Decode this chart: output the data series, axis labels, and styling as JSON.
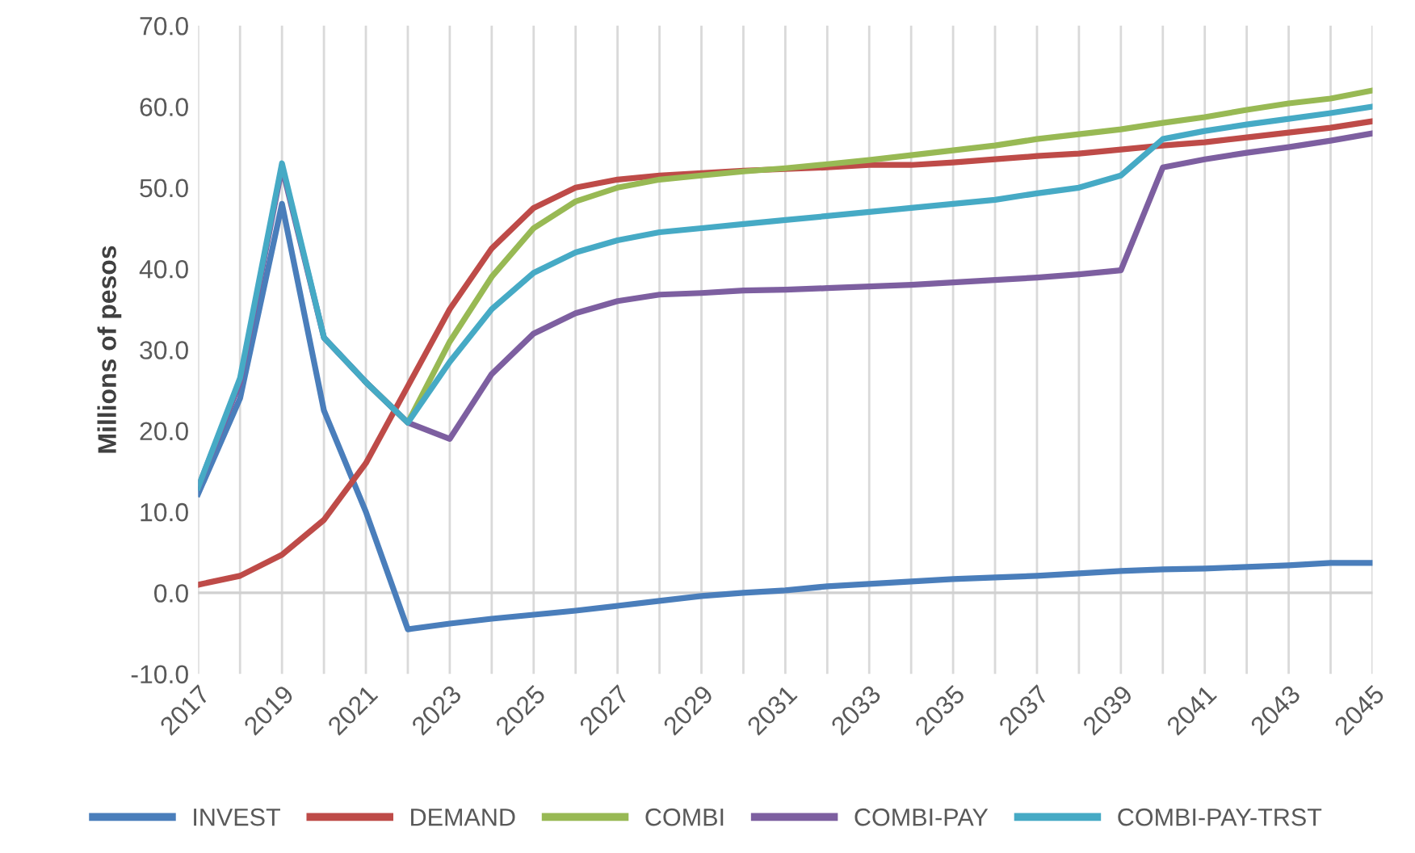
{
  "chart_data": {
    "type": "line",
    "ylabel": "Millions of pesos",
    "x": [
      2017,
      2018,
      2019,
      2020,
      2021,
      2022,
      2023,
      2024,
      2025,
      2026,
      2027,
      2028,
      2029,
      2030,
      2031,
      2032,
      2033,
      2034,
      2035,
      2036,
      2037,
      2038,
      2039,
      2040,
      2041,
      2042,
      2043,
      2044,
      2045
    ],
    "series": [
      {
        "name": "INVEST",
        "color": "#4a7ebb",
        "values": [
          12.2,
          24,
          48,
          22.5,
          10,
          -4.5,
          -3.8,
          -3.2,
          -2.7,
          -2.2,
          -1.6,
          -1.0,
          -0.4,
          0,
          0.3,
          0.8,
          1.1,
          1.4,
          1.7,
          1.9,
          2.1,
          2.4,
          2.7,
          2.9,
          3.0,
          3.2,
          3.4,
          3.7,
          3.7
        ]
      },
      {
        "name": "DEMAND",
        "color": "#be4b48",
        "values": [
          1.0,
          2.1,
          4.7,
          9.0,
          16,
          25.5,
          35,
          42.5,
          47.5,
          50,
          51,
          51.5,
          51.8,
          52.1,
          52.3,
          52.5,
          52.8,
          52.8,
          53.1,
          53.5,
          53.9,
          54.2,
          54.7,
          55.2,
          55.6,
          56.2,
          56.8,
          57.4,
          58.2
        ]
      },
      {
        "name": "COMBI",
        "color": "#98b954",
        "values": [
          null,
          null,
          null,
          null,
          26,
          21,
          31,
          39,
          45,
          48.3,
          50,
          51,
          51.5,
          52,
          52.4,
          52.9,
          53.4,
          54,
          54.6,
          55.2,
          56,
          56.6,
          57.2,
          58,
          58.7,
          59.6,
          60.4,
          61,
          62
        ]
      },
      {
        "name": "COMBI-PAY",
        "color": "#7d5fa0",
        "values": [
          13,
          26,
          52.5,
          31.5,
          26,
          21,
          19,
          27,
          32,
          34.5,
          36,
          36.8,
          37,
          37.3,
          37.4,
          37.6,
          37.8,
          38,
          38.3,
          38.6,
          38.9,
          39.3,
          39.8,
          52.5,
          53.5,
          54.3,
          55,
          55.8,
          56.7
        ]
      },
      {
        "name": "COMBI-PAY-TRST",
        "color": "#46aac5",
        "values": [
          13,
          26.5,
          53,
          31.5,
          26,
          21,
          28.5,
          35,
          39.5,
          42,
          43.5,
          44.5,
          45,
          45.5,
          46,
          46.5,
          47,
          47.5,
          48,
          48.5,
          49.3,
          50,
          51.5,
          56,
          57,
          57.8,
          58.5,
          59.2,
          60
        ]
      }
    ],
    "xlim": [
      2017,
      2045
    ],
    "xticks": [
      2017,
      {
        "value": 2018,
        "label": null
      },
      2019,
      {
        "value": 2020,
        "label": null
      },
      2021,
      {
        "value": 2022,
        "label": null
      },
      2023,
      {
        "value": 2024,
        "label": null
      },
      2025,
      {
        "value": 2026,
        "label": null
      },
      2027,
      {
        "value": 2028,
        "label": null
      },
      2029,
      {
        "value": 2030,
        "label": null
      },
      2031,
      {
        "value": 2032,
        "label": null
      },
      2033,
      {
        "value": 2034,
        "label": null
      },
      2035,
      {
        "value": 2036,
        "label": null
      },
      2037,
      {
        "value": 2038,
        "label": null
      },
      2039,
      {
        "value": 2040,
        "label": null
      },
      2041,
      {
        "value": 2042,
        "label": null
      },
      2043,
      {
        "value": 2044,
        "label": null
      },
      2045
    ],
    "ylim": [
      -10,
      70
    ],
    "yticks": [
      {
        "value": -10,
        "label": "-10.0"
      },
      {
        "value": 0,
        "label": "0.0"
      },
      {
        "value": 10,
        "label": "10.0"
      },
      {
        "value": 20,
        "label": "20.0"
      },
      {
        "value": 30,
        "label": "30.0"
      },
      {
        "value": 40,
        "label": "40.0"
      },
      {
        "value": 50,
        "label": "50.0"
      },
      {
        "value": 60,
        "label": "60.0"
      },
      {
        "value": 70,
        "label": "70.0"
      }
    ],
    "ref_lines": [
      {
        "axis": "y",
        "value": 0,
        "color": "#d0d0d0"
      }
    ],
    "grid": "x",
    "legend": "bottom",
    "marker": "none",
    "line_style": "solid"
  }
}
